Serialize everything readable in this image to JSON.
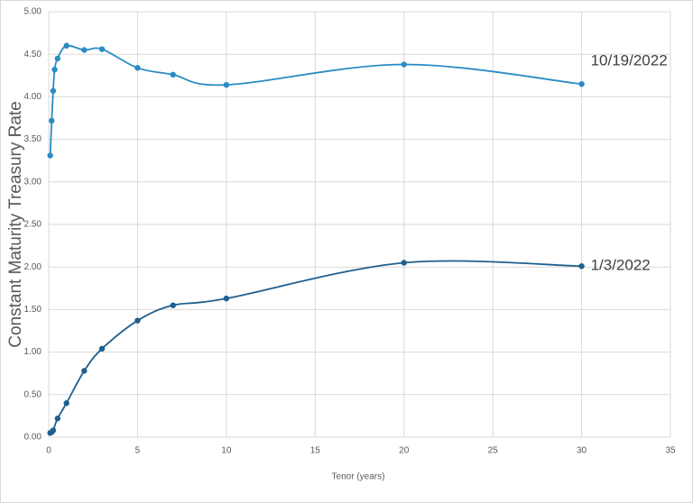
{
  "chart_data": {
    "type": "line",
    "x_label": "Tenor (years)",
    "y_label": "Constant Maturity Treasury Rate",
    "series": [
      {
        "name": "10/19/2022",
        "color": "#2a8cc4",
        "x": [
          0.083,
          0.167,
          0.25,
          0.333,
          0.5,
          1,
          2,
          3,
          5,
          7,
          10,
          20,
          30
        ],
        "values": [
          3.31,
          3.72,
          4.07,
          4.32,
          4.45,
          4.6,
          4.55,
          4.56,
          4.34,
          4.26,
          4.14,
          4.38,
          4.15
        ]
      },
      {
        "name": "1/3/2022",
        "color": "#1f5f8f",
        "x": [
          0.083,
          0.167,
          0.25,
          0.5,
          1,
          2,
          3,
          5,
          7,
          10,
          20,
          30
        ],
        "values": [
          0.05,
          0.06,
          0.08,
          0.22,
          0.4,
          0.78,
          1.04,
          1.37,
          1.55,
          1.63,
          2.05,
          2.01
        ]
      }
    ],
    "xlim": [
      0,
      35
    ],
    "xticks": [
      0,
      5,
      10,
      15,
      20,
      25,
      30,
      35
    ],
    "ylim": [
      0,
      5
    ],
    "yticks": [
      {
        "value": 0,
        "label": "0.00"
      },
      {
        "value": 0.5,
        "label": "0.50"
      },
      {
        "value": 1,
        "label": "1.00"
      },
      {
        "value": 1.5,
        "label": "1.50"
      },
      {
        "value": 2,
        "label": "2.00"
      },
      {
        "value": 2.5,
        "label": "2.50"
      },
      {
        "value": 3,
        "label": "3.00"
      },
      {
        "value": 3.5,
        "label": "3.50"
      },
      {
        "value": 4,
        "label": "4.00"
      },
      {
        "value": 4.5,
        "label": "4.50"
      },
      {
        "value": 5,
        "label": "5.00"
      }
    ],
    "grid": true
  }
}
